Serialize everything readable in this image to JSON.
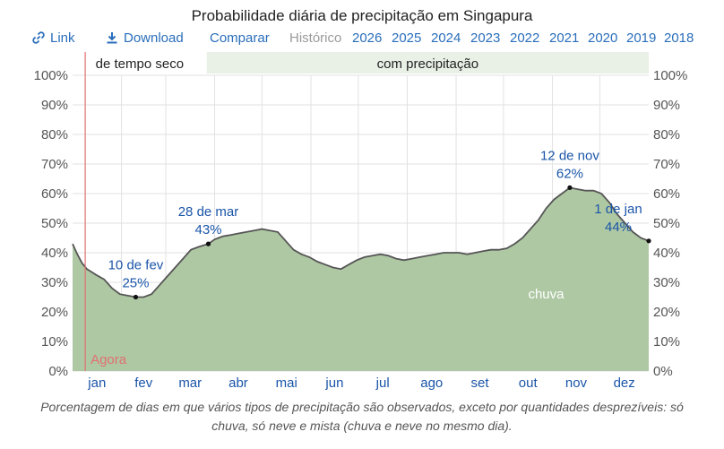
{
  "title": "Probabilidade diária de precipitação em Singapura",
  "toolbar": {
    "link": "Link",
    "download": "Download",
    "compare": "Comparar",
    "history": "Histórico",
    "years": [
      "2026",
      "2025",
      "2024",
      "2023",
      "2022",
      "2021",
      "2020",
      "2019",
      "2018"
    ]
  },
  "colors": {
    "rain": "#afc8a4",
    "line": "#555555",
    "now": "#e07070",
    "band": "#e9f0e6",
    "annot": "#1a55a8"
  },
  "chart_data": {
    "type": "area",
    "title": "Probabilidade diária de precipitação em Singapura",
    "ylim": [
      0,
      100
    ],
    "yticks": [
      "0%",
      "10%",
      "20%",
      "30%",
      "40%",
      "50%",
      "60%",
      "70%",
      "80%",
      "90%",
      "100%"
    ],
    "months": [
      "jan",
      "fev",
      "mar",
      "abr",
      "mai",
      "jun",
      "jul",
      "ago",
      "set",
      "out",
      "nov",
      "dez"
    ],
    "bands": [
      {
        "label": "de tempo seco",
        "start_day": 0,
        "end_day": 85
      },
      {
        "label": "com precipitação",
        "start_day": 85,
        "end_day": 365
      }
    ],
    "now": {
      "label": "Agora",
      "day": 8
    },
    "series": [
      {
        "name": "chuva",
        "points": [
          [
            0,
            43
          ],
          [
            3,
            39.5
          ],
          [
            6,
            36.5
          ],
          [
            9,
            34.5
          ],
          [
            12,
            33.5
          ],
          [
            15,
            32.5
          ],
          [
            20,
            31
          ],
          [
            25,
            28
          ],
          [
            30,
            26
          ],
          [
            35,
            25.5
          ],
          [
            40,
            25
          ],
          [
            45,
            25
          ],
          [
            50,
            26
          ],
          [
            55,
            29
          ],
          [
            60,
            32
          ],
          [
            65,
            35
          ],
          [
            70,
            38
          ],
          [
            75,
            41
          ],
          [
            80,
            42
          ],
          [
            86,
            43
          ],
          [
            90,
            44.5
          ],
          [
            95,
            45.5
          ],
          [
            100,
            46
          ],
          [
            105,
            46.5
          ],
          [
            110,
            47
          ],
          [
            115,
            47.5
          ],
          [
            120,
            48
          ],
          [
            125,
            47.5
          ],
          [
            130,
            47
          ],
          [
            135,
            44
          ],
          [
            140,
            41
          ],
          [
            145,
            39.5
          ],
          [
            150,
            38.5
          ],
          [
            155,
            37
          ],
          [
            160,
            36
          ],
          [
            165,
            35
          ],
          [
            170,
            34.5
          ],
          [
            175,
            36
          ],
          [
            180,
            37.5
          ],
          [
            185,
            38.5
          ],
          [
            190,
            39
          ],
          [
            195,
            39.5
          ],
          [
            200,
            39
          ],
          [
            205,
            38
          ],
          [
            210,
            37.5
          ],
          [
            215,
            38
          ],
          [
            220,
            38.5
          ],
          [
            225,
            39
          ],
          [
            230,
            39.5
          ],
          [
            235,
            40
          ],
          [
            240,
            40
          ],
          [
            245,
            40
          ],
          [
            250,
            39.5
          ],
          [
            255,
            40
          ],
          [
            260,
            40.5
          ],
          [
            265,
            41
          ],
          [
            270,
            41
          ],
          [
            275,
            41.5
          ],
          [
            280,
            43
          ],
          [
            285,
            45
          ],
          [
            290,
            48
          ],
          [
            295,
            51
          ],
          [
            300,
            55
          ],
          [
            305,
            58
          ],
          [
            310,
            60
          ],
          [
            315,
            62
          ],
          [
            320,
            61.5
          ],
          [
            325,
            61
          ],
          [
            330,
            61
          ],
          [
            335,
            60
          ],
          [
            340,
            57
          ],
          [
            345,
            53
          ],
          [
            350,
            50
          ],
          [
            355,
            47
          ],
          [
            360,
            45
          ],
          [
            365,
            44
          ]
        ]
      }
    ],
    "annotations": [
      {
        "label": "10 de fev",
        "value": "25%",
        "day": 40,
        "y": 25
      },
      {
        "label": "28 de mar",
        "value": "43%",
        "day": 86,
        "y": 43
      },
      {
        "label": "12 de nov",
        "value": "62%",
        "day": 315,
        "y": 62
      },
      {
        "label": "1 de jan",
        "value": "44%",
        "day": 365,
        "y": 44
      }
    ],
    "series_label": "chuva"
  },
  "caption": "Porcentagem de dias em que vários tipos de precipitação são observados, exceto por quantidades desprezíveis: só chuva, só neve e mista (chuva e neve no mesmo dia)."
}
